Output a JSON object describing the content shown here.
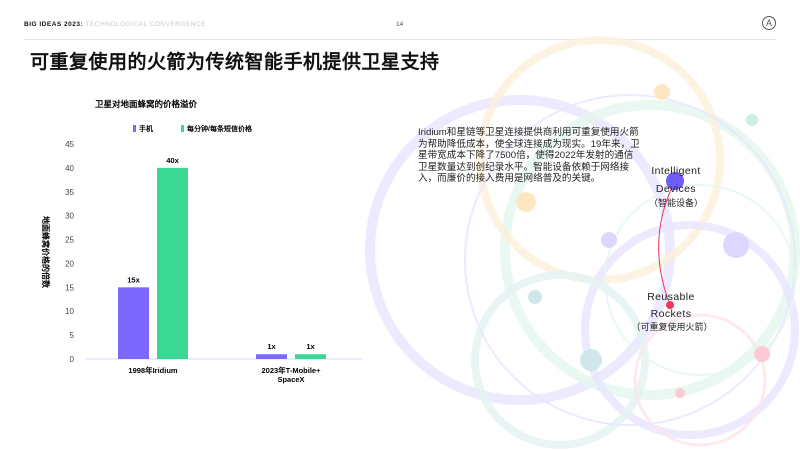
{
  "header": {
    "brand": "BIG IDEAS 2023:",
    "subtitle": "TECHNOLOGICAL CONVERGENCE",
    "page": "14"
  },
  "title": "可重复使用的火箭为传统智能手机提供卫星支持",
  "description": "Iridium和星链等卫星连接提供商利用可重复使用火箭为帮助降低成本，使全球连接成为现实。19年来，卫星带宽成本下降了7500倍，使得2022年发射的通信卫星数量达到创纪录水平。智能设备依赖于网络接入，而廉价的接入费用是网络普及的关键。",
  "network": {
    "node1": {
      "label1": "Intelligent",
      "label2": "Devices",
      "label_cn": "（智能设备）",
      "color": "#6e5cff"
    },
    "node2": {
      "label1": "Reusable",
      "label2": "Rockets",
      "label_cn": "（可重复使用火箭）",
      "color": "#f0365c"
    }
  },
  "chart_data": {
    "type": "bar",
    "title": "卫星对地面蜂窝的价格溢价",
    "ylabel": "地面蜂窝价格的倍数",
    "xlabel": "",
    "ylim": [
      0,
      45
    ],
    "yticks": [
      0,
      5,
      10,
      15,
      20,
      25,
      30,
      35,
      40,
      45
    ],
    "grid": false,
    "legend_position": "top",
    "categories": [
      "1998年Iridium",
      "2023年T-Mobile+ SpaceX"
    ],
    "series": [
      {
        "name": "手机",
        "values": [
          15,
          1
        ],
        "labels": [
          "15x",
          "1x"
        ],
        "color": "#7d68ff"
      },
      {
        "name": "每分钟/每条短信价格",
        "values": [
          40,
          1
        ],
        "labels": [
          "40x",
          "1x"
        ],
        "color": "#3ad894"
      }
    ]
  }
}
